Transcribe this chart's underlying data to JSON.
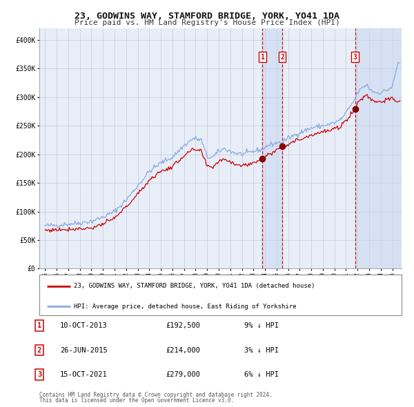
{
  "title": "23, GODWINS WAY, STAMFORD BRIDGE, YORK, YO41 1DA",
  "subtitle": "Price paid vs. HM Land Registry's House Price Index (HPI)",
  "legend_line1": "23, GODWINS WAY, STAMFORD BRIDGE, YORK, YO41 1DA (detached house)",
  "legend_line2": "HPI: Average price, detached house, East Riding of Yorkshire",
  "footer1": "Contains HM Land Registry data © Crown copyright and database right 2024.",
  "footer2": "This data is licensed under the Open Government Licence v3.0.",
  "sales": [
    {
      "num": 1,
      "date": "10-OCT-2013",
      "price": 192500,
      "rel": "9% ↓ HPI",
      "x_year": 2013.78
    },
    {
      "num": 2,
      "date": "26-JUN-2015",
      "price": 214000,
      "rel": "3% ↓ HPI",
      "x_year": 2015.49
    },
    {
      "num": 3,
      "date": "15-OCT-2021",
      "price": 279000,
      "rel": "6% ↓ HPI",
      "x_year": 2021.79
    }
  ],
  "ylim": [
    0,
    420000
  ],
  "xlim_start": 1994.5,
  "xlim_end": 2025.8,
  "background_color": "#ffffff",
  "plot_bg_color": "#e8eef8",
  "grid_color": "#c8c8d8",
  "red_line_color": "#cc0000",
  "blue_line_color": "#88aadd",
  "sale_dot_color": "#880000",
  "vline_color": "#cc0000",
  "shade_color": "#c8d8f0",
  "num_box_color": "#cc0000",
  "hpi_anchors": [
    [
      1995.0,
      75000
    ],
    [
      1996.0,
      76000
    ],
    [
      1997.0,
      78000
    ],
    [
      1998.0,
      80000
    ],
    [
      1999.0,
      83000
    ],
    [
      2000.0,
      90000
    ],
    [
      2001.0,
      100000
    ],
    [
      2002.0,
      120000
    ],
    [
      2003.0,
      145000
    ],
    [
      2004.0,
      170000
    ],
    [
      2005.0,
      185000
    ],
    [
      2006.0,
      195000
    ],
    [
      2007.0,
      215000
    ],
    [
      2007.8,
      228000
    ],
    [
      2008.5,
      225000
    ],
    [
      2009.0,
      195000
    ],
    [
      2009.5,
      195000
    ],
    [
      2010.0,
      205000
    ],
    [
      2010.5,
      210000
    ],
    [
      2011.0,
      205000
    ],
    [
      2011.5,
      202000
    ],
    [
      2012.0,
      200000
    ],
    [
      2012.5,
      202000
    ],
    [
      2013.0,
      205000
    ],
    [
      2013.78,
      209000
    ],
    [
      2014.0,
      213000
    ],
    [
      2014.5,
      217000
    ],
    [
      2015.0,
      220000
    ],
    [
      2015.49,
      221000
    ],
    [
      2016.0,
      228000
    ],
    [
      2016.5,
      233000
    ],
    [
      2017.0,
      238000
    ],
    [
      2017.5,
      242000
    ],
    [
      2018.0,
      246000
    ],
    [
      2018.5,
      248000
    ],
    [
      2019.0,
      250000
    ],
    [
      2019.5,
      252000
    ],
    [
      2020.0,
      255000
    ],
    [
      2020.5,
      260000
    ],
    [
      2021.0,
      272000
    ],
    [
      2021.79,
      297000
    ],
    [
      2022.0,
      308000
    ],
    [
      2022.5,
      318000
    ],
    [
      2022.8,
      322000
    ],
    [
      2023.0,
      315000
    ],
    [
      2023.5,
      308000
    ],
    [
      2024.0,
      308000
    ],
    [
      2024.5,
      312000
    ],
    [
      2025.0,
      318000
    ],
    [
      2025.5,
      360000
    ]
  ],
  "red_anchors": [
    [
      1995.0,
      67000
    ],
    [
      1996.0,
      68000
    ],
    [
      1997.0,
      69000
    ],
    [
      1998.0,
      70000
    ],
    [
      1999.0,
      71000
    ],
    [
      2000.0,
      78000
    ],
    [
      2001.0,
      88000
    ],
    [
      2002.0,
      108000
    ],
    [
      2003.0,
      130000
    ],
    [
      2004.0,
      155000
    ],
    [
      2005.0,
      170000
    ],
    [
      2006.0,
      178000
    ],
    [
      2007.0,
      198000
    ],
    [
      2007.8,
      208000
    ],
    [
      2008.5,
      205000
    ],
    [
      2009.0,
      178000
    ],
    [
      2009.5,
      178000
    ],
    [
      2010.0,
      188000
    ],
    [
      2010.5,
      192000
    ],
    [
      2011.0,
      187000
    ],
    [
      2011.5,
      183000
    ],
    [
      2012.0,
      180000
    ],
    [
      2012.5,
      182000
    ],
    [
      2013.0,
      185000
    ],
    [
      2013.78,
      192500
    ],
    [
      2014.0,
      196000
    ],
    [
      2014.5,
      200000
    ],
    [
      2015.0,
      210000
    ],
    [
      2015.49,
      214000
    ],
    [
      2016.0,
      218000
    ],
    [
      2016.5,
      222000
    ],
    [
      2017.0,
      226000
    ],
    [
      2017.5,
      230000
    ],
    [
      2018.0,
      234000
    ],
    [
      2018.5,
      237000
    ],
    [
      2019.0,
      239000
    ],
    [
      2019.5,
      241000
    ],
    [
      2020.0,
      244000
    ],
    [
      2020.5,
      248000
    ],
    [
      2021.0,
      260000
    ],
    [
      2021.79,
      279000
    ],
    [
      2022.0,
      290000
    ],
    [
      2022.5,
      300000
    ],
    [
      2022.8,
      305000
    ],
    [
      2023.0,
      298000
    ],
    [
      2023.5,
      293000
    ],
    [
      2024.0,
      292000
    ],
    [
      2024.5,
      295000
    ],
    [
      2025.0,
      297000
    ],
    [
      2025.5,
      292000
    ]
  ]
}
